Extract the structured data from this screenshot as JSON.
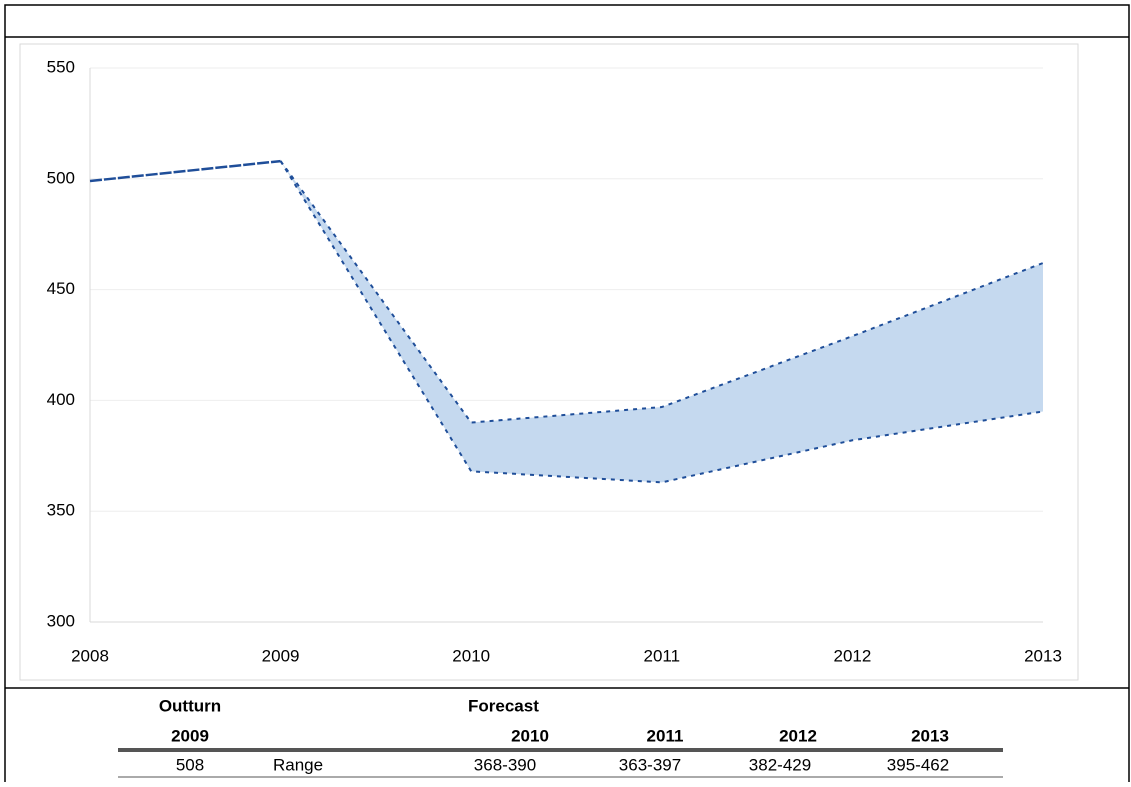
{
  "chart_data": {
    "type": "line",
    "x": [
      2008,
      2009,
      2010,
      2011,
      2012,
      2013
    ],
    "xlim": [
      2008,
      2013
    ],
    "xticks": [
      2008,
      2009,
      2010,
      2011,
      2012,
      2013
    ],
    "ylim": [
      300,
      550
    ],
    "yticks": [
      300,
      350,
      400,
      450,
      500,
      550
    ],
    "grid": true,
    "band_color": "#c5d9ef",
    "series": [
      {
        "color": "#1f4e99",
        "values": [
          499,
          508,
          null,
          null,
          null,
          null
        ]
      },
      {
        "color": "#1f4e99",
        "values": [
          null,
          508,
          390,
          397,
          429,
          462
        ]
      },
      {
        "color": "#1f4e99",
        "values": [
          null,
          508,
          368,
          363,
          382,
          395
        ]
      }
    ]
  },
  "table": {
    "group_headers": [
      "Outturn",
      "Forecast"
    ],
    "years": [
      "2009",
      "2010",
      "2011",
      "2012",
      "2013"
    ],
    "row": [
      "508",
      "Range",
      "368-390",
      "363-397",
      "382-429",
      "395-462"
    ]
  }
}
